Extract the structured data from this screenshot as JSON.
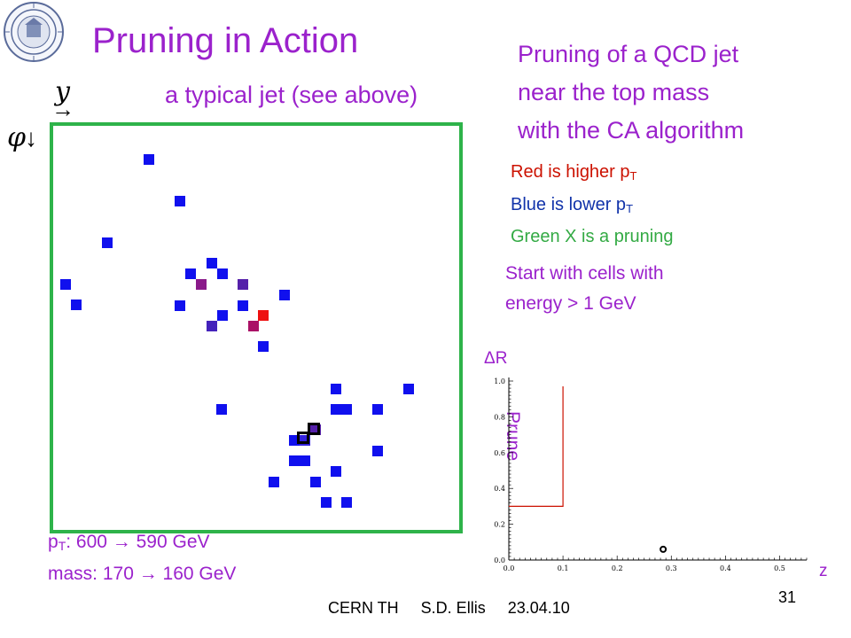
{
  "title": "Pruning in Action",
  "heading_right": [
    "Pruning of a QCD jet",
    "near the top mass",
    "with the CA algorithm"
  ],
  "typical_jet": "a typical jet (see above)",
  "axes": {
    "y_symbol": "y",
    "y_arrow": "→",
    "phi_symbol": "φ",
    "phi_arrow": "↓"
  },
  "legend": {
    "red_prefix": "Red is higher p",
    "red_sub": "T",
    "blue_prefix": "Blue is lower p",
    "blue_sub": "T",
    "green": "Green X is a pruning"
  },
  "start_text": [
    "Start with cells with",
    "energy > 1 GeV"
  ],
  "pt_prefix": "p",
  "pt_sub": "T",
  "pt_text": ": 600 → 590 GeV",
  "mass_text": "mass: 170 → 160 GeV",
  "footer": "CERN TH     S.D. Ellis     23.04.10",
  "page_number": "31",
  "colors": {
    "purple_text": "#9b22cc",
    "red_text": "#cc1100",
    "blue_text": "#1133aa",
    "green_text": "#33aa44",
    "box_green": "#2eb34a",
    "cell_blue": "#1010ee",
    "cell_red": "#ee1010"
  },
  "cells": [
    {
      "color": "#1010ee"
    },
    {
      "color": "#1010ee"
    },
    {
      "color": "#1010ee"
    },
    {
      "color": "#1010ee"
    },
    {
      "color": "#1010ee"
    },
    {
      "color": "#1010ee"
    },
    {
      "color": "#1010ee"
    },
    {
      "color": "#8a1a8a"
    },
    {
      "color": "#1010ee"
    },
    {
      "color": "#5520aa"
    },
    {
      "color": "#1010ee"
    },
    {
      "color": "#1010ee"
    },
    {
      "color": "#ee1010"
    },
    {
      "color": "#1010ee"
    },
    {
      "color": "#4422bb"
    },
    {
      "color": "#aa1166"
    },
    {
      "color": "#1010ee"
    },
    {
      "color": "#1010ee"
    },
    {
      "color": "#1010ee"
    },
    {
      "color": "#1010ee"
    },
    {
      "color": "#1010ee"
    },
    {
      "color": "#1010ee"
    },
    {
      "color": "#1010ee"
    },
    {
      "color": "#1010ee"
    },
    {
      "color": "#1010ee"
    },
    {
      "color": "#1010ee"
    },
    {
      "color": "#3322dd"
    },
    {
      "color": "#5520aa"
    },
    {
      "color": "#1010ee"
    },
    {
      "color": "#1010ee"
    },
    {
      "color": "#1010ee"
    },
    {
      "color": "#1010ee"
    },
    {
      "color": "#1010ee"
    },
    {
      "color": "#1010ee"
    },
    {
      "color": "#1010ee"
    },
    {
      "color": "#1010ee"
    }
  ],
  "chart_data": {
    "type": "scatter",
    "title": "",
    "xlabel": "z",
    "ylabel": "ΔR",
    "xlim": [
      0.0,
      0.55
    ],
    "ylim": [
      0.0,
      1.0
    ],
    "x_ticks": [
      "0.0",
      "0.1",
      "0.2",
      "0.3",
      "0.4",
      "0.5"
    ],
    "y_ticks": [
      "0.0",
      "0.2",
      "0.4",
      "0.6",
      "0.8",
      "1.0"
    ],
    "points": [
      {
        "x": 0.285,
        "y": 0.06
      }
    ],
    "prune_region": {
      "label": "Prune",
      "z_max": 0.1,
      "dr_min": 0.3,
      "dr_max": 0.97
    }
  }
}
